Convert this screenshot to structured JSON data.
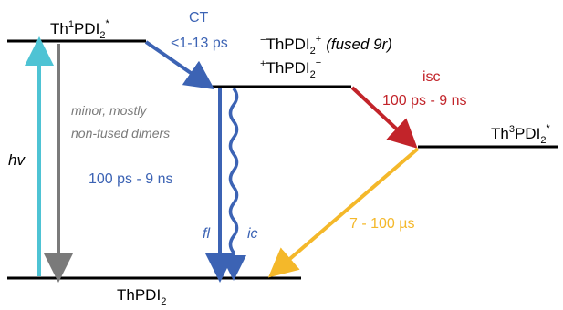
{
  "states": {
    "ground": {
      "base": "ThPDI",
      "sub": "2"
    },
    "singlet": {
      "pre": "Th",
      "sup1": "1",
      "mid": "PDI",
      "sub": "2",
      "sup2": "*"
    },
    "ct_state": {
      "pre_sup": "+",
      "base": "ThPDI",
      "sub": "2",
      "sup": "−"
    },
    "ct_state_alt": {
      "pre_sup": "−",
      "base": "ThPDI",
      "sub": "2",
      "sup": "+",
      "note": "(fused 9r)"
    },
    "triplet": {
      "pre": "Th",
      "sup1": "3",
      "mid": "PDI",
      "sub": "2",
      "sup2": "*"
    }
  },
  "transitions": {
    "excitation": {
      "label": "hv"
    },
    "minor_decay": {
      "line1": "minor, mostly",
      "line2": "non-fused dimers"
    },
    "charge_transfer": {
      "name": "CT",
      "rate": "<1-13 ps"
    },
    "ct_decay": {
      "rate": "100 ps - 9 ns",
      "fl": "fl",
      "ic": "ic"
    },
    "intersystem": {
      "name": "isc",
      "rate": "100 ps - 9 ns"
    },
    "triplet_decay": {
      "rate": "7 - 100 µs"
    }
  },
  "colors": {
    "excitation": "#4ec3d4",
    "minor": "#7a7a7a",
    "ct": "#3c63b4",
    "isc": "#c2242a",
    "triplet_decay": "#f4b82a",
    "level": "#000000"
  }
}
